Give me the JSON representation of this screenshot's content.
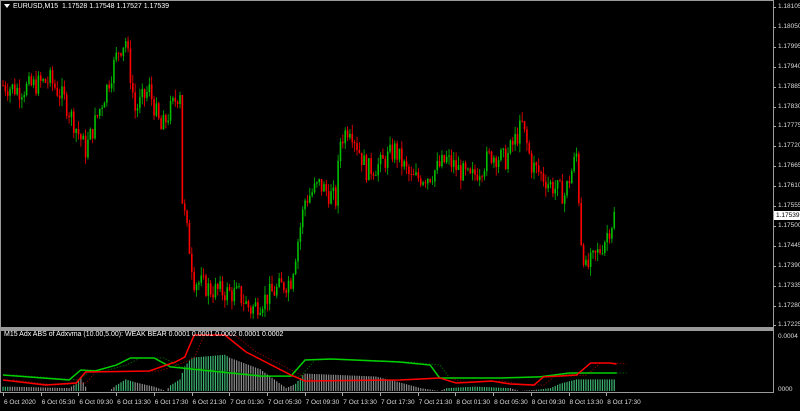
{
  "main_window": {
    "symbol_label": "EURUSD,M15",
    "ohlc": "1.17528 1.17548 1.17527 1.17539",
    "current_price": "1.17539",
    "price_axis": [
      "1.18105",
      "1.18050",
      "1.17995",
      "1.17940",
      "1.17885",
      "1.17830",
      "1.17775",
      "1.17720",
      "1.17665",
      "1.17610",
      "1.17555",
      "1.17500",
      "1.17445",
      "1.17390",
      "1.17335",
      "1.17280",
      "1.17225"
    ],
    "colors": {
      "bull": "#00c000",
      "bear": "#ff0000",
      "background": "#000000",
      "frame": "#9a9a9a"
    }
  },
  "chart_data": {
    "type": "candlestick",
    "timeframe": "M15",
    "ylim": [
      1.17225,
      1.18105
    ],
    "close_path": [
      {
        "t": "6 Oct 01:30",
        "p": 1.17889
      },
      {
        "t": "6 Oct 03:15",
        "p": 1.17876
      },
      {
        "t": "6 Oct 06:30",
        "p": 1.17903
      },
      {
        "t": "6 Oct 08:00",
        "p": 1.17848
      },
      {
        "t": "6 Oct 10:15",
        "p": 1.1771
      },
      {
        "t": "6 Oct 12:15",
        "p": 1.17862
      },
      {
        "t": "6 Oct 13:45",
        "p": 1.17986
      },
      {
        "t": "6 Oct 14:30",
        "p": 1.18014
      },
      {
        "t": "6 Oct 15:30",
        "p": 1.17821
      },
      {
        "t": "6 Oct 17:00",
        "p": 1.17876
      },
      {
        "t": "6 Oct 18:15",
        "p": 1.17765
      },
      {
        "t": "6 Oct 20:15",
        "p": 1.17876
      },
      {
        "t": "6 Oct 20:30",
        "p": 1.17572
      },
      {
        "t": "6 Oct 21:45",
        "p": 1.17351
      },
      {
        "t": "6 Oct 23:30",
        "p": 1.17324
      },
      {
        "t": "7 Oct 02:30",
        "p": 1.1731
      },
      {
        "t": "7 Oct 03:45",
        "p": 1.17269
      },
      {
        "t": "7 Oct 05:45",
        "p": 1.1731
      },
      {
        "t": "7 Oct 08:00",
        "p": 1.17351
      },
      {
        "t": "7 Oct 09:30",
        "p": 1.17572
      },
      {
        "t": "7 Oct 11:00",
        "p": 1.17614
      },
      {
        "t": "7 Oct 12:45",
        "p": 1.17572
      },
      {
        "t": "7 Oct 13:15",
        "p": 1.17738
      },
      {
        "t": "7 Oct 14:15",
        "p": 1.17779
      },
      {
        "t": "7 Oct 16:00",
        "p": 1.17655
      },
      {
        "t": "7 Oct 17:30",
        "p": 1.17669
      },
      {
        "t": "7 Oct 19:00",
        "p": 1.1771
      },
      {
        "t": "7 Oct 20:45",
        "p": 1.17628
      },
      {
        "t": "7 Oct 22:45",
        "p": 1.17641
      },
      {
        "t": "8 Oct 00:30",
        "p": 1.17683
      },
      {
        "t": "8 Oct 03:00",
        "p": 1.17628
      },
      {
        "t": "8 Oct 05:15",
        "p": 1.17697
      },
      {
        "t": "8 Oct 06:45",
        "p": 1.17683
      },
      {
        "t": "8 Oct 08:30",
        "p": 1.17779
      },
      {
        "t": "8 Oct 09:30",
        "p": 1.17669
      },
      {
        "t": "8 Oct 11:30",
        "p": 1.17614
      },
      {
        "t": "8 Oct 13:00",
        "p": 1.17586
      },
      {
        "t": "8 Oct 14:15",
        "p": 1.17697
      },
      {
        "t": "8 Oct 14:45",
        "p": 1.17462
      },
      {
        "t": "8 Oct 15:15",
        "p": 1.17379
      },
      {
        "t": "8 Oct 16:45",
        "p": 1.17434
      },
      {
        "t": "8 Oct 18:30",
        "p": 1.17539
      }
    ]
  },
  "indicator_window": {
    "title": "M15 Adx ABS of Adxvma (10.00,5.00): WEAK BEAR 0.0001 0.0001 0.0002 0.0001 0.0002",
    "axis_top": "0.0004",
    "axis_bottom": "0000",
    "ylim": [
      0,
      0.0004
    ],
    "colors": {
      "plus": "#00d000",
      "minus": "#ff0000",
      "plus_signal": "#006000",
      "minus_signal": "#800000",
      "hist_up": "#3cb371",
      "hist_flat": "#8c8c8c"
    },
    "plus_line": [
      {
        "t": "6 Oct 01:30",
        "v": 0.00011
      },
      {
        "t": "6 Oct 08:30",
        "v": 7.6e-05
      },
      {
        "t": "6 Oct 09:45",
        "v": 0.000145
      },
      {
        "t": "6 Oct 11:15",
        "v": 0.000138
      },
      {
        "t": "6 Oct 13:30",
        "v": 0.000179
      },
      {
        "t": "6 Oct 15:00",
        "v": 0.000228
      },
      {
        "t": "6 Oct 17:30",
        "v": 0.000228
      },
      {
        "t": "6 Oct 19:15",
        "v": 0.000166
      },
      {
        "t": "6 Oct 22:30",
        "v": 0.000145
      },
      {
        "t": "7 Oct 04:45",
        "v": 0.000103
      },
      {
        "t": "7 Oct 08:00",
        "v": 0.000103
      },
      {
        "t": "7 Oct 09:30",
        "v": 0.000214
      },
      {
        "t": "7 Oct 12:15",
        "v": 0.000221
      },
      {
        "t": "7 Oct 19:30",
        "v": 0.0002
      },
      {
        "t": "7 Oct 22:45",
        "v": 0.000179
      },
      {
        "t": "7 Oct 23:45",
        "v": 9e-05
      },
      {
        "t": "8 Oct 06:15",
        "v": 9e-05
      },
      {
        "t": "8 Oct 10:15",
        "v": 9.7e-05
      },
      {
        "t": "8 Oct 13:30",
        "v": 0.000124
      },
      {
        "t": "8 Oct 18:30",
        "v": 0.000124
      }
    ],
    "minus_line": [
      {
        "t": "6 Oct 01:30",
        "v": 7.6e-05
      },
      {
        "t": "6 Oct 06:00",
        "v": 4.1e-05
      },
      {
        "t": "6 Oct 09:15",
        "v": 5.5e-05
      },
      {
        "t": "6 Oct 10:15",
        "v": 0.000131
      },
      {
        "t": "6 Oct 17:00",
        "v": 0.000138
      },
      {
        "t": "6 Oct 19:45",
        "v": 0.0002
      },
      {
        "t": "6 Oct 20:45",
        "v": 0.000234
      },
      {
        "t": "6 Oct 21:45",
        "v": 0.000386
      },
      {
        "t": "7 Oct 01:00",
        "v": 0.000386
      },
      {
        "t": "7 Oct 03:15",
        "v": 0.000269
      },
      {
        "t": "7 Oct 08:00",
        "v": 0.00011
      },
      {
        "t": "7 Oct 09:30",
        "v": 6.9e-05
      },
      {
        "t": "7 Oct 19:30",
        "v": 7.6e-05
      },
      {
        "t": "7 Oct 23:45",
        "v": 9e-05
      },
      {
        "t": "8 Oct 01:30",
        "v": 5.5e-05
      },
      {
        "t": "8 Oct 05:15",
        "v": 6.9e-05
      },
      {
        "t": "8 Oct 07:15",
        "v": 4.8e-05
      },
      {
        "t": "8 Oct 09:45",
        "v": 4.1e-05
      },
      {
        "t": "8 Oct 10:45",
        "v": 9.7e-05
      },
      {
        "t": "8 Oct 14:15",
        "v": 0.00011
      },
      {
        "t": "8 Oct 15:45",
        "v": 0.000193
      },
      {
        "t": "8 Oct 17:45",
        "v": 0.000193
      },
      {
        "t": "8 Oct 18:30",
        "v": 0.000186
      }
    ],
    "histogram": [
      {
        "t": "6 Oct 01:30",
        "v": 3e-05,
        "up": true
      },
      {
        "t": "6 Oct 02:15",
        "v": 3e-05,
        "up": false
      },
      {
        "t": "6 Oct 08:30",
        "v": 2e-05,
        "up": false
      },
      {
        "t": "6 Oct 09:15",
        "v": 5e-05,
        "up": true
      },
      {
        "t": "6 Oct 09:45",
        "v": 9e-05,
        "up": false
      },
      {
        "t": "6 Oct 10:30",
        "v": 0.0,
        "up": false
      },
      {
        "t": "6 Oct 12:45",
        "v": 0.0,
        "up": false
      },
      {
        "t": "6 Oct 13:30",
        "v": 4e-05,
        "up": true
      },
      {
        "t": "6 Oct 14:30",
        "v": 8e-05,
        "up": true
      },
      {
        "t": "6 Oct 15:30",
        "v": 6e-05,
        "up": false
      },
      {
        "t": "6 Oct 17:30",
        "v": 3e-05,
        "up": false
      },
      {
        "t": "6 Oct 18:45",
        "v": 0.0,
        "up": false
      },
      {
        "t": "6 Oct 19:15",
        "v": 4e-05,
        "up": true
      },
      {
        "t": "6 Oct 20:15",
        "v": 8e-05,
        "up": true
      },
      {
        "t": "6 Oct 20:45",
        "v": 0.00017,
        "up": true
      },
      {
        "t": "6 Oct 21:30",
        "v": 0.00023,
        "up": true
      },
      {
        "t": "7 Oct 01:00",
        "v": 0.00025,
        "up": true
      },
      {
        "t": "7 Oct 01:30",
        "v": 0.00023,
        "up": false
      },
      {
        "t": "7 Oct 04:45",
        "v": 0.00015,
        "up": false
      },
      {
        "t": "7 Oct 07:30",
        "v": 2e-05,
        "up": false
      },
      {
        "t": "7 Oct 08:30",
        "v": 5e-05,
        "up": true
      },
      {
        "t": "7 Oct 09:15",
        "v": 0.00011,
        "up": true
      },
      {
        "t": "7 Oct 09:30",
        "v": 0.00012,
        "up": false
      },
      {
        "t": "7 Oct 17:00",
        "v": 0.0001,
        "up": false
      },
      {
        "t": "7 Oct 19:30",
        "v": 6e-05,
        "up": false
      },
      {
        "t": "7 Oct 21:45",
        "v": 2e-05,
        "up": false
      },
      {
        "t": "7 Oct 23:45",
        "v": 0.0,
        "up": false
      },
      {
        "t": "8 Oct 00:30",
        "v": 2e-05,
        "up": true
      },
      {
        "t": "8 Oct 03:30",
        "v": 3e-05,
        "up": true
      },
      {
        "t": "8 Oct 07:15",
        "v": 2e-05,
        "up": false
      },
      {
        "t": "8 Oct 08:15",
        "v": 0.0,
        "up": false
      },
      {
        "t": "8 Oct 10:15",
        "v": 1e-05,
        "up": true
      },
      {
        "t": "8 Oct 11:30",
        "v": 2e-05,
        "up": true
      },
      {
        "t": "8 Oct 12:30",
        "v": 5e-05,
        "up": true
      },
      {
        "t": "8 Oct 14:15",
        "v": 8e-05,
        "up": true
      },
      {
        "t": "8 Oct 18:30",
        "v": 8e-05,
        "up": true
      }
    ]
  },
  "time_axis": [
    "6 Oct 2020",
    "6 Oct 05:30",
    "6 Oct 09:30",
    "6 Oct 13:30",
    "6 Oct 17:30",
    "6 Oct 21:30",
    "7 Oct 01:30",
    "7 Oct 05:30",
    "7 Oct 09:30",
    "7 Oct 13:30",
    "7 Oct 17:30",
    "7 Oct 21:30",
    "8 Oct 01:30",
    "8 Oct 05:30",
    "8 Oct 09:30",
    "8 Oct 13:30",
    "8 Oct 17:30"
  ]
}
